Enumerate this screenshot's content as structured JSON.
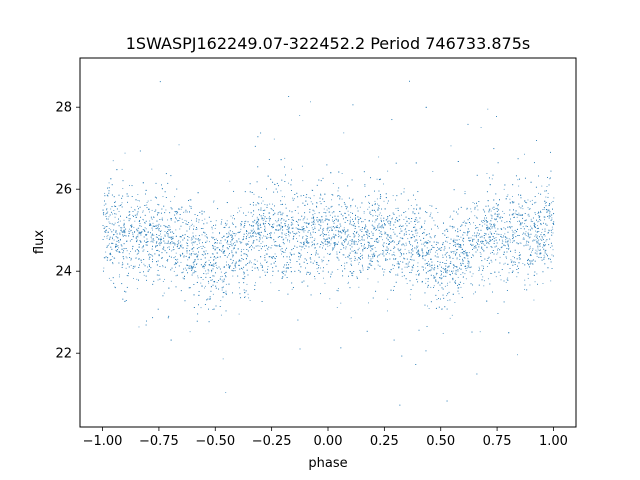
{
  "chart_data": {
    "type": "scatter",
    "title": "1SWASPJ162249.07-322452.2 Period 746733.875s",
    "xlabel": "phase",
    "ylabel": "flux",
    "xlim": [
      -1.1,
      1.1
    ],
    "ylim": [
      20.2,
      29.2
    ],
    "xticks": [
      -1.0,
      -0.75,
      -0.5,
      -0.25,
      0.0,
      0.25,
      0.5,
      0.75,
      1.0
    ],
    "xtick_labels": [
      "−1.00",
      "−0.75",
      "−0.50",
      "−0.25",
      "0.00",
      "0.25",
      "0.50",
      "0.75",
      "1.00"
    ],
    "yticks": [
      22,
      24,
      26,
      28
    ],
    "ytick_labels": [
      "22",
      "24",
      "26",
      "28"
    ],
    "grid": false,
    "point_color": "#1f77b4",
    "series": [
      {
        "x_range": [
          -1.0,
          1.0
        ],
        "median_flux": 24.8,
        "flux_spread_1sigma": 0.55,
        "flux_range": [
          20.6,
          28.9
        ],
        "profile": [
          {
            "phase": -1.0,
            "flux": 25.1
          },
          {
            "phase": -0.9,
            "flux": 24.7
          },
          {
            "phase": -0.75,
            "flux": 24.9
          },
          {
            "phase": -0.6,
            "flux": 24.6
          },
          {
            "phase": -0.5,
            "flux": 24.2
          },
          {
            "phase": -0.35,
            "flux": 24.7
          },
          {
            "phase": -0.25,
            "flux": 25.0
          },
          {
            "phase": -0.1,
            "flux": 24.8
          },
          {
            "phase": 0.0,
            "flux": 25.1
          },
          {
            "phase": 0.1,
            "flux": 24.7
          },
          {
            "phase": 0.25,
            "flux": 24.9
          },
          {
            "phase": 0.4,
            "flux": 24.6
          },
          {
            "phase": 0.5,
            "flux": 24.2
          },
          {
            "phase": 0.65,
            "flux": 24.7
          },
          {
            "phase": 0.75,
            "flux": 25.0
          },
          {
            "phase": 0.9,
            "flux": 24.8
          },
          {
            "phase": 1.0,
            "flux": 25.1
          }
        ]
      }
    ]
  }
}
